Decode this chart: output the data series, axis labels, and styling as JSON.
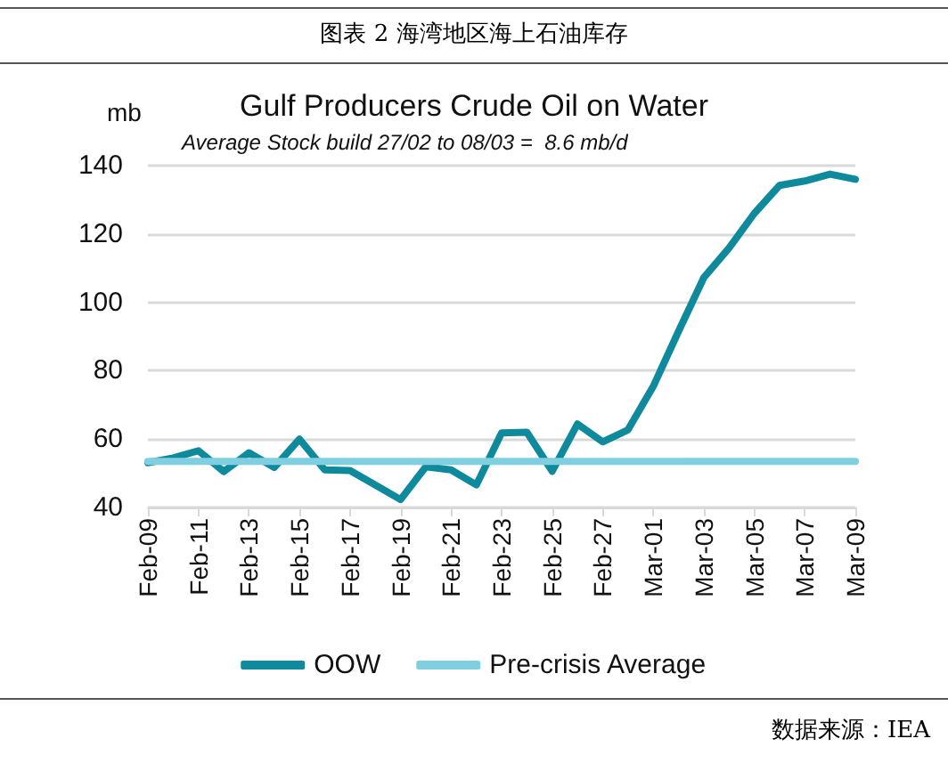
{
  "chart_data": {
    "type": "line",
    "title": "Gulf Producers Crude Oil on Water",
    "ylabel": "mb",
    "annotations": [
      "图表 2 海湾地区海上石油库存",
      "Average Stock build 27/02 to 08/03 =  8.6 mb/d",
      "数据来源：IEA"
    ],
    "categories": [
      "Feb-09",
      null,
      "Feb-11",
      null,
      "Feb-13",
      null,
      "Feb-15",
      null,
      "Feb-17",
      null,
      "Feb-19",
      null,
      "Feb-21",
      null,
      "Feb-23",
      null,
      "Feb-25",
      null,
      "Feb-27",
      null,
      "Mar-01",
      null,
      "Mar-03",
      null,
      "Mar-05",
      null,
      "Mar-07",
      null,
      "Mar-09"
    ],
    "series": [
      {
        "name": "OOW",
        "color": "#0e8a9c",
        "values": [
          53.1,
          54.5,
          56.6,
          50.5,
          56,
          51.7,
          60,
          51,
          50.8,
          46.6,
          42.3,
          51.9,
          51,
          46.6,
          61.8,
          62,
          50.6,
          64.4,
          59.2,
          62.7,
          75.4,
          91.5,
          107.2,
          115.9,
          126,
          134.2,
          135.5,
          137.5,
          136
        ]
      },
      {
        "name": "Pre-crisis Average",
        "color": "#7fcfe0",
        "values": [
          53.5,
          53.5,
          53.5,
          53.5,
          53.5,
          53.5,
          53.5,
          53.5,
          53.5,
          53.5,
          53.5,
          53.5,
          53.5,
          53.5,
          53.5,
          53.5,
          53.5,
          53.5,
          53.5,
          53.5,
          53.5,
          53.5,
          53.5,
          53.5,
          53.5,
          53.5,
          53.5,
          53.5,
          53.5
        ]
      }
    ],
    "ylim": [
      40,
      140
    ],
    "yticks": [
      40,
      60,
      80,
      100,
      120,
      140
    ],
    "grid": "y",
    "legend": "bottom",
    "marker": "none",
    "line_style": "solid"
  }
}
